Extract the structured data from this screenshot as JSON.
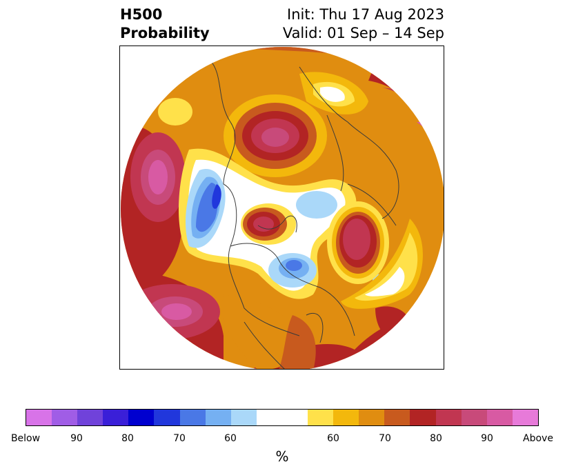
{
  "header": {
    "title_line1": "H500",
    "title_line2": "Probability",
    "init_text": "Init: Thu 17 Aug 2023",
    "valid_text": "Valid: 01 Sep – 14 Sep"
  },
  "map": {
    "projection": "north-polar-stereographic",
    "variable": "500 hPa height anomaly probability"
  },
  "colorbar": {
    "colors": [
      "#d873e8",
      "#a05de6",
      "#7042da",
      "#3a1fd8",
      "#0000cf",
      "#2137dc",
      "#4a78e6",
      "#75b0f2",
      "#aad8f9",
      "#ffffff",
      "#ffe14a",
      "#f3b80c",
      "#e08d10",
      "#c85a1e",
      "#b22424",
      "#c13651",
      "#c84a7a",
      "#d85aa3",
      "#e77ad9"
    ],
    "widths": [
      1,
      1,
      1,
      1,
      1,
      1,
      1,
      1,
      1,
      2,
      1,
      1,
      1,
      1,
      1,
      1,
      1,
      1,
      1
    ],
    "tick_labels": [
      "Below",
      "90",
      "80",
      "70",
      "60",
      "60",
      "70",
      "80",
      "90",
      "Above"
    ],
    "unit_label": "%"
  }
}
